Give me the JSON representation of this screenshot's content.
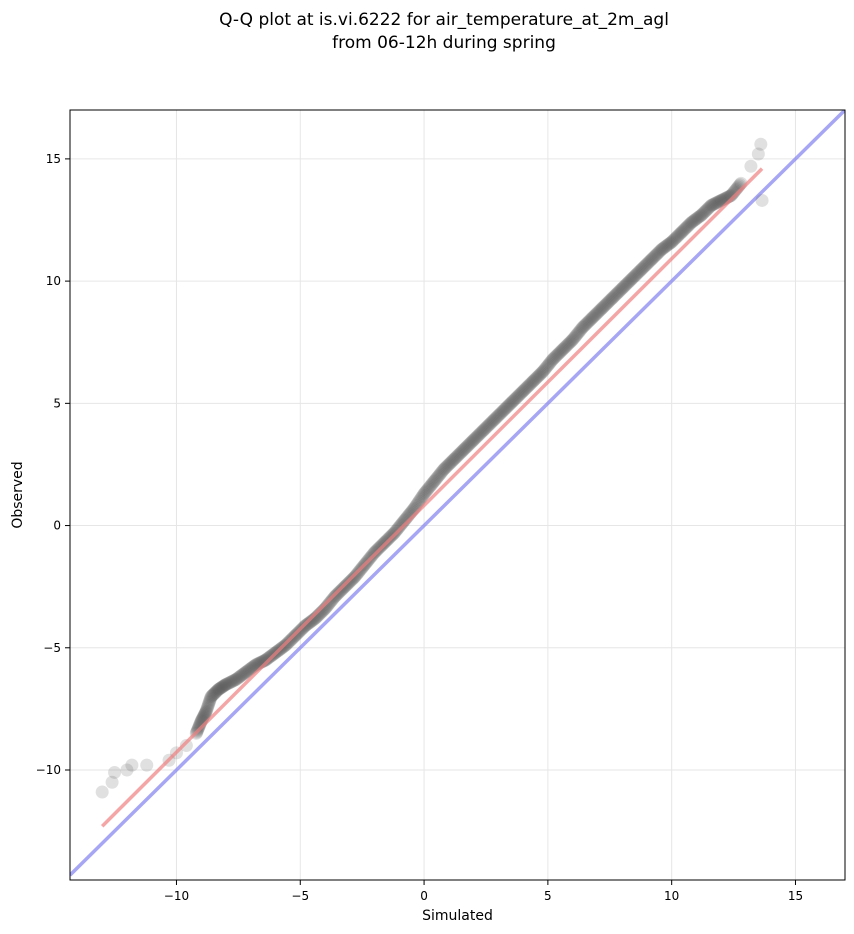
{
  "chart_data": {
    "type": "scatter",
    "title_lines": [
      "Q-Q plot at is.vi.6222 for air_temperature_at_2m_agl",
      "from 06-12h during spring"
    ],
    "xlabel": "Simulated",
    "ylabel": "Observed",
    "xlim": [
      -14.3,
      17
    ],
    "ylim": [
      -14.5,
      17
    ],
    "xticks": [
      -10,
      -5,
      0,
      5,
      10,
      15
    ],
    "yticks": [
      -10,
      -5,
      0,
      5,
      10,
      15
    ],
    "xtick_labels": [
      "−10",
      "−5",
      "0",
      "5",
      "10",
      "15"
    ],
    "ytick_labels": [
      "−10",
      "−5",
      "0",
      "5",
      "10",
      "15"
    ],
    "grid": true,
    "colors": {
      "points": "#555555",
      "fit_line": "#f08080",
      "identity_line": "#8080f0",
      "grid": "#e6e6e6"
    },
    "quantiles": {
      "x": [
        -13.0,
        -12.6,
        -12.5,
        -12.0,
        -11.8,
        -11.2,
        -10.3,
        -10.0,
        -9.6,
        -9.2,
        -9.0,
        -8.8,
        -8.6,
        -8.3,
        -8.0,
        -7.6,
        -7.2,
        -6.8,
        -6.4,
        -6.0,
        -5.6,
        -5.2,
        -4.8,
        -4.4,
        -4.0,
        -3.6,
        -3.2,
        -2.8,
        -2.4,
        -2.0,
        -1.6,
        -1.2,
        -0.8,
        -0.4,
        0.0,
        0.4,
        0.8,
        1.2,
        1.6,
        2.0,
        2.4,
        2.8,
        3.2,
        3.6,
        4.0,
        4.4,
        4.8,
        5.2,
        5.6,
        6.0,
        6.4,
        6.8,
        7.2,
        7.6,
        8.0,
        8.4,
        8.8,
        9.2,
        9.6,
        10.0,
        10.4,
        10.8,
        11.2,
        11.6,
        12.0,
        12.4,
        12.8,
        13.2,
        13.5,
        13.6,
        13.65
      ],
      "y": [
        -10.9,
        -10.5,
        -10.1,
        -10.0,
        -9.8,
        -9.8,
        -9.6,
        -9.3,
        -9.0,
        -8.5,
        -8.0,
        -7.6,
        -7.0,
        -6.7,
        -6.5,
        -6.3,
        -6.0,
        -5.7,
        -5.5,
        -5.2,
        -4.9,
        -4.5,
        -4.1,
        -3.8,
        -3.4,
        -2.9,
        -2.5,
        -2.1,
        -1.6,
        -1.1,
        -0.7,
        -0.3,
        0.2,
        0.7,
        1.3,
        1.8,
        2.3,
        2.7,
        3.1,
        3.5,
        3.9,
        4.3,
        4.7,
        5.1,
        5.5,
        5.9,
        6.3,
        6.8,
        7.2,
        7.6,
        8.1,
        8.5,
        8.9,
        9.3,
        9.7,
        10.1,
        10.5,
        10.9,
        11.3,
        11.6,
        12.0,
        12.4,
        12.7,
        13.1,
        13.3,
        13.5,
        14.0,
        14.7,
        15.2,
        15.6,
        13.3
      ]
    },
    "fit_line": {
      "x": [
        -13.0,
        13.65
      ],
      "y": [
        -12.3,
        14.6
      ]
    },
    "identity_line": {
      "x": [
        -14.3,
        17
      ],
      "y": [
        -14.3,
        17
      ]
    }
  }
}
